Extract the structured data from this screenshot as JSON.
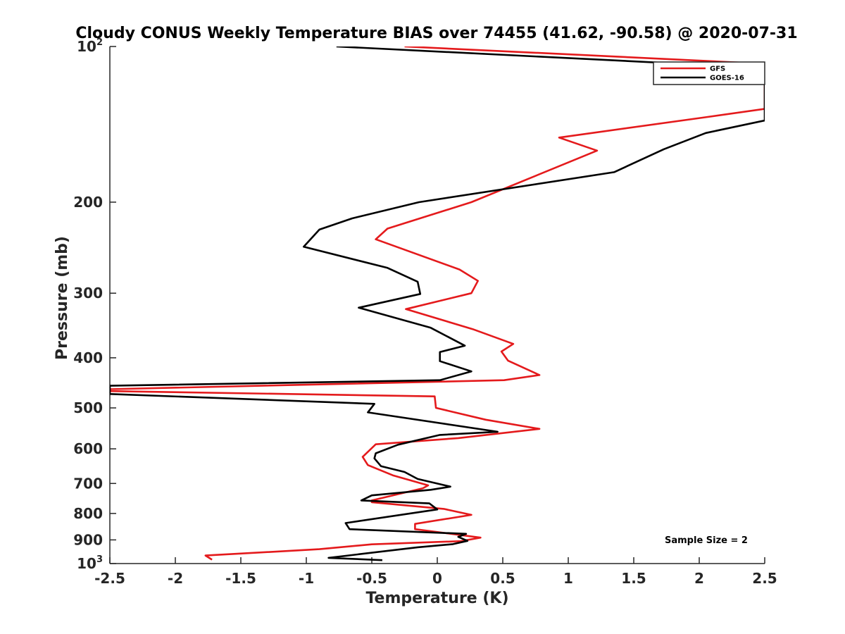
{
  "chart_data": {
    "type": "line",
    "title": "Cloudy CONUS Weekly Temperature BIAS over 74455 (41.62, -90.58) @ 2020-07-31",
    "xlabel": "Temperature (K)",
    "ylabel": "Pressure (mb)",
    "xlim": [
      -2.5,
      2.5
    ],
    "ylim": [
      100,
      1000
    ],
    "y_scale": "log",
    "y_reversed": true,
    "grid": false,
    "legend_position": "top-right",
    "x_ticks": [
      -2.5,
      -2,
      -1.5,
      -1,
      -0.5,
      0,
      0.5,
      1,
      1.5,
      2,
      2.5
    ],
    "x_tick_labels": [
      "-2.5",
      "-2",
      "-1.5",
      "-1",
      "-0.5",
      "0",
      "0.5",
      "1",
      "1.5",
      "2",
      "2.5"
    ],
    "y_ticks": [
      {
        "value": 100,
        "base": "10",
        "exp": "2"
      },
      {
        "value": 200,
        "base": "200",
        "exp": ""
      },
      {
        "value": 300,
        "base": "300",
        "exp": ""
      },
      {
        "value": 400,
        "base": "400",
        "exp": ""
      },
      {
        "value": 500,
        "base": "500",
        "exp": ""
      },
      {
        "value": 600,
        "base": "600",
        "exp": ""
      },
      {
        "value": 700,
        "base": "700",
        "exp": ""
      },
      {
        "value": 800,
        "base": "800",
        "exp": ""
      },
      {
        "value": 900,
        "base": "900",
        "exp": ""
      },
      {
        "value": 1000,
        "base": "10",
        "exp": "3"
      }
    ],
    "annotation": "Sample Size = 2",
    "series": [
      {
        "name": "GFS",
        "color": "#e41a1c",
        "points": [
          [
            -0.25,
            100
          ],
          [
            2.5,
            108
          ],
          [
            2.5,
            132
          ],
          [
            2.05,
            137
          ],
          [
            0.93,
            150
          ],
          [
            1.22,
            159
          ],
          [
            0.26,
            200
          ],
          [
            -0.38,
            225
          ],
          [
            -0.47,
            236
          ],
          [
            0.17,
            270
          ],
          [
            0.31,
            284
          ],
          [
            0.26,
            300
          ],
          [
            -0.24,
            322
          ],
          [
            0.27,
            352
          ],
          [
            0.58,
            376
          ],
          [
            0.49,
            389
          ],
          [
            0.54,
            405
          ],
          [
            0.78,
            432
          ],
          [
            0.51,
            442
          ],
          [
            -2.5,
            460
          ],
          [
            -2.5,
            464
          ],
          [
            -0.02,
            475
          ],
          [
            -0.01,
            500
          ],
          [
            0.37,
            527
          ],
          [
            0.78,
            549
          ],
          [
            0.16,
            572
          ],
          [
            -0.47,
            588
          ],
          [
            -0.57,
            622
          ],
          [
            -0.53,
            645
          ],
          [
            -0.34,
            675
          ],
          [
            -0.07,
            706
          ],
          [
            -0.11,
            715
          ],
          [
            -0.5,
            755
          ],
          [
            -0.5,
            761
          ],
          [
            0.05,
            784
          ],
          [
            0.26,
            805
          ],
          [
            -0.17,
            838
          ],
          [
            -0.17,
            858
          ],
          [
            0.33,
            891
          ],
          [
            0.18,
            905
          ],
          [
            -0.5,
            918
          ],
          [
            -0.9,
            938
          ],
          [
            -1.77,
            965
          ],
          [
            -1.72,
            983
          ]
        ]
      },
      {
        "name": "GOES-16",
        "color": "#000000",
        "points": [
          [
            -0.77,
            100
          ],
          [
            2.5,
            110
          ],
          [
            2.5,
            139
          ],
          [
            2.05,
            147
          ],
          [
            1.73,
            158
          ],
          [
            1.35,
            175
          ],
          [
            -0.14,
            200
          ],
          [
            -0.65,
            215
          ],
          [
            -0.9,
            226
          ],
          [
            -1.02,
            244
          ],
          [
            -0.38,
            268
          ],
          [
            -0.15,
            285
          ],
          [
            -0.13,
            301
          ],
          [
            -0.6,
            320
          ],
          [
            -0.05,
            350
          ],
          [
            0.21,
            379
          ],
          [
            0.02,
            390
          ],
          [
            0.02,
            406
          ],
          [
            0.26,
            425
          ],
          [
            0.02,
            442
          ],
          [
            -2.5,
            453
          ],
          [
            -2.5,
            470
          ],
          [
            -0.48,
            491
          ],
          [
            -0.53,
            510
          ],
          [
            0.46,
            556
          ],
          [
            0.02,
            564
          ],
          [
            -0.3,
            589
          ],
          [
            -0.47,
            612
          ],
          [
            -0.48,
            626
          ],
          [
            -0.43,
            648
          ],
          [
            -0.25,
            665
          ],
          [
            -0.15,
            686
          ],
          [
            0.1,
            710
          ],
          [
            -0.05,
            720
          ],
          [
            -0.5,
            738
          ],
          [
            -0.58,
            755
          ],
          [
            -0.06,
            765
          ],
          [
            0.0,
            786
          ],
          [
            -0.7,
            835
          ],
          [
            -0.67,
            858
          ],
          [
            0.22,
            876
          ],
          [
            0.16,
            888
          ],
          [
            0.23,
            904
          ],
          [
            0.12,
            917
          ],
          [
            -0.15,
            930
          ],
          [
            -0.83,
            975
          ],
          [
            -0.42,
            985
          ]
        ]
      }
    ]
  }
}
